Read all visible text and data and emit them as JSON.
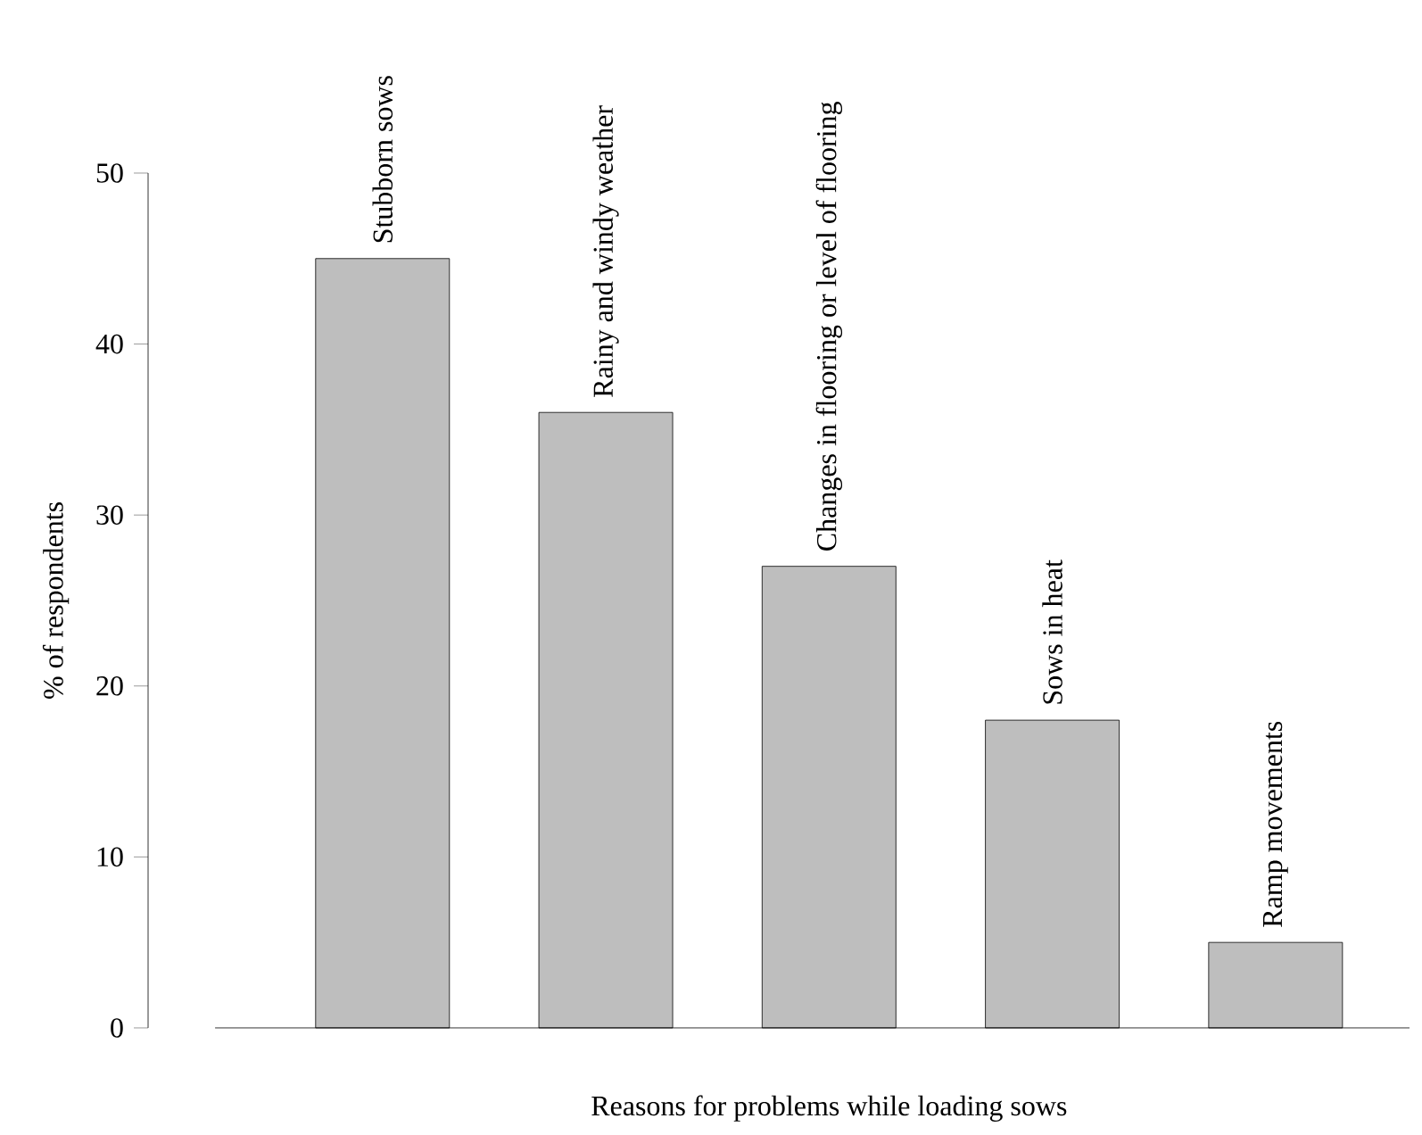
{
  "chart_data": {
    "type": "bar",
    "xlabel": "Reasons for problems while loading sows",
    "ylabel": "% of respondents",
    "categories": [
      "Stubborn sows",
      "Rainy and windy weather",
      "Changes in flooring or level of flooring",
      "Sows in heat",
      "Ramp movements"
    ],
    "values": [
      45,
      36,
      27,
      18,
      5
    ],
    "color": "#bebebe",
    "ylim": [
      0,
      50
    ],
    "yticks": [
      0,
      10,
      20,
      30,
      40,
      50
    ]
  }
}
